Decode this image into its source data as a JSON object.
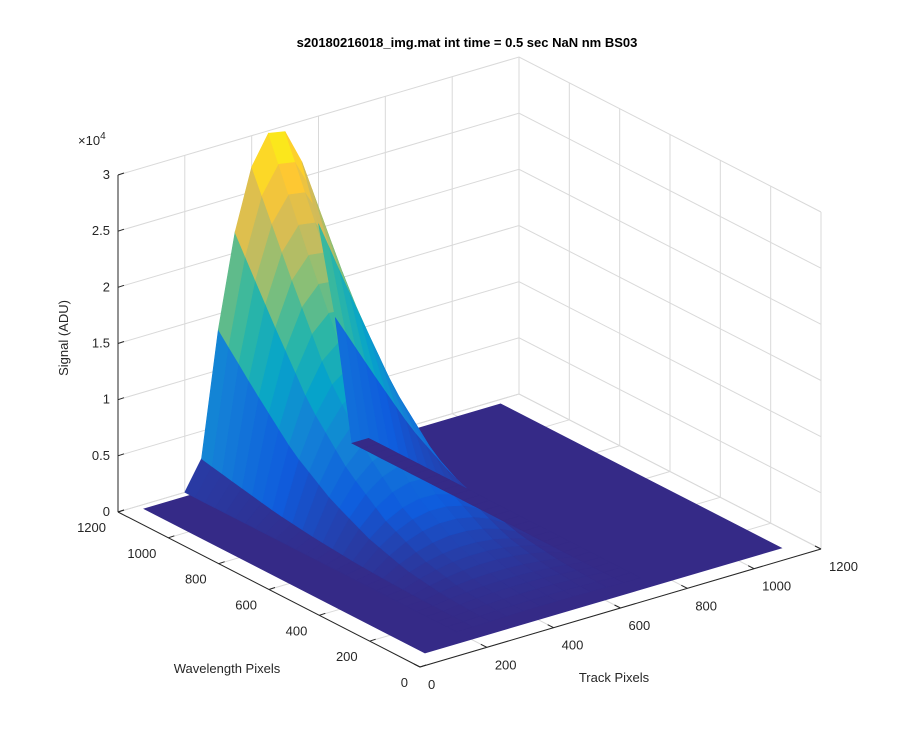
{
  "chart_data": {
    "type": "surface",
    "title": "s20180216018_img.mat int time = 0.5 sec  NaN nm BS03",
    "xlabel": "Track Pixels",
    "ylabel": "Wavelength Pixels",
    "zlabel": "Signal (ADU)",
    "z_exponent_label": "×10",
    "z_exponent": "4",
    "xlim": [
      0,
      1200
    ],
    "ylim": [
      0,
      1200
    ],
    "zlim": [
      0,
      30000
    ],
    "x_ticks": [
      "0",
      "200",
      "400",
      "600",
      "800",
      "1000",
      "1200"
    ],
    "y_ticks": [
      "0",
      "200",
      "400",
      "600",
      "800",
      "1000",
      "1200"
    ],
    "z_ticks": [
      "0",
      "0.5",
      "1",
      "1.5",
      "2",
      "2.5",
      "3"
    ],
    "grid": true,
    "colormap": "parula",
    "baseline_color": "#352a87",
    "peak_profile": {
      "description_units": "wavelength pixel vs signal (ADU) along the ridge",
      "wavelength": [
        0,
        150,
        300,
        450,
        600,
        750,
        900,
        1050,
        1200
      ],
      "signal": [
        0,
        150,
        600,
        1800,
        4200,
        8000,
        13500,
        21500,
        30000
      ]
    }
  }
}
